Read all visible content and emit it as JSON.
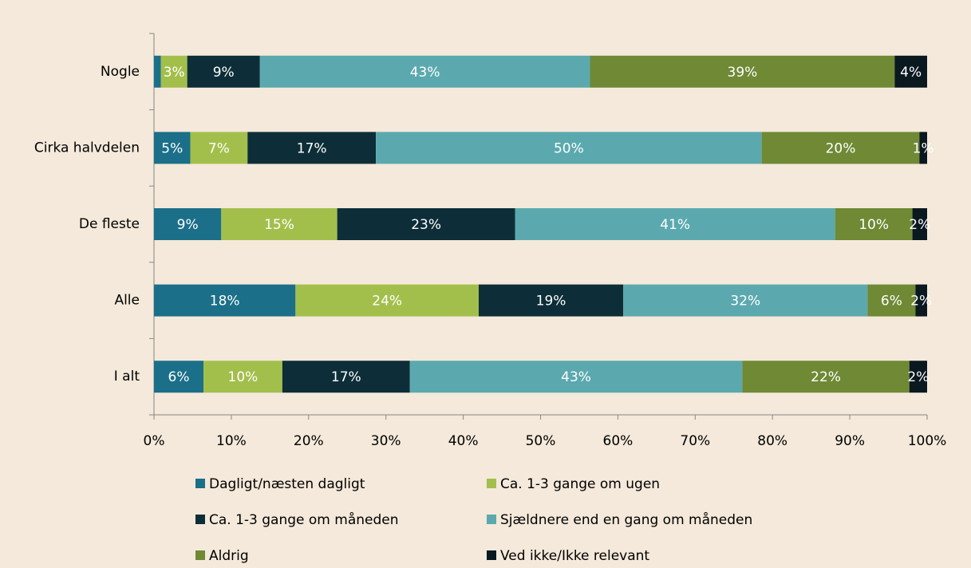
{
  "chart_data": {
    "type": "stacked_barh",
    "categories": [
      "Nogle",
      "Cirka halvdelen",
      "De fleste",
      "Alle",
      "I alt"
    ],
    "series": [
      {
        "name": "Dagligt/næsten dagligt",
        "color": "#1b6f89",
        "values": [
          0.9,
          4.7,
          8.7,
          18.3,
          6.4
        ],
        "value_labels": [
          null,
          "5%",
          "9%",
          "18%",
          "6%"
        ]
      },
      {
        "name": "Ca. 1-3 gange om ugen",
        "color": "#a3bf4b",
        "values": [
          3.4,
          7.4,
          15.0,
          23.7,
          10.2
        ],
        "value_labels": [
          "3%",
          "7%",
          "15%",
          "24%",
          "10%"
        ]
      },
      {
        "name": "Ca. 1-3 gange om måneden",
        "color": "#0d2e38",
        "values": [
          9.4,
          16.6,
          23.0,
          18.7,
          16.5
        ],
        "value_labels": [
          "9%",
          "17%",
          "23%",
          "19%",
          "17%"
        ]
      },
      {
        "name": "Sjældnere end en gang om måneden",
        "color": "#5ba9ae",
        "values": [
          42.7,
          49.9,
          41.4,
          31.6,
          43.0
        ],
        "value_labels": [
          "43%",
          "50%",
          "41%",
          "32%",
          "43%"
        ]
      },
      {
        "name": "Aldrig",
        "color": "#6f8935",
        "values": [
          39.4,
          20.4,
          10.0,
          6.2,
          21.6
        ],
        "value_labels": [
          "39%",
          "20%",
          "10%",
          "6%",
          "22%"
        ]
      },
      {
        "name": "Ved ikke/Ikke relevant",
        "color": "#0a1820",
        "values": [
          4.2,
          1.0,
          1.9,
          1.5,
          2.3
        ],
        "value_labels": [
          "4%",
          "1%",
          "2%",
          "2%",
          "2%"
        ]
      }
    ],
    "xlim": [
      0,
      100
    ],
    "xticks": [
      {
        "value": 0,
        "label": "0%"
      },
      {
        "value": 10,
        "label": "10%"
      },
      {
        "value": 20,
        "label": "20%"
      },
      {
        "value": 30,
        "label": "30%"
      },
      {
        "value": 40,
        "label": "40%"
      },
      {
        "value": 50,
        "label": "50%"
      },
      {
        "value": 60,
        "label": "60%"
      },
      {
        "value": 70,
        "label": "70%"
      },
      {
        "value": 80,
        "label": "80%"
      },
      {
        "value": 90,
        "label": "90%"
      },
      {
        "value": 100,
        "label": "100%"
      }
    ]
  }
}
